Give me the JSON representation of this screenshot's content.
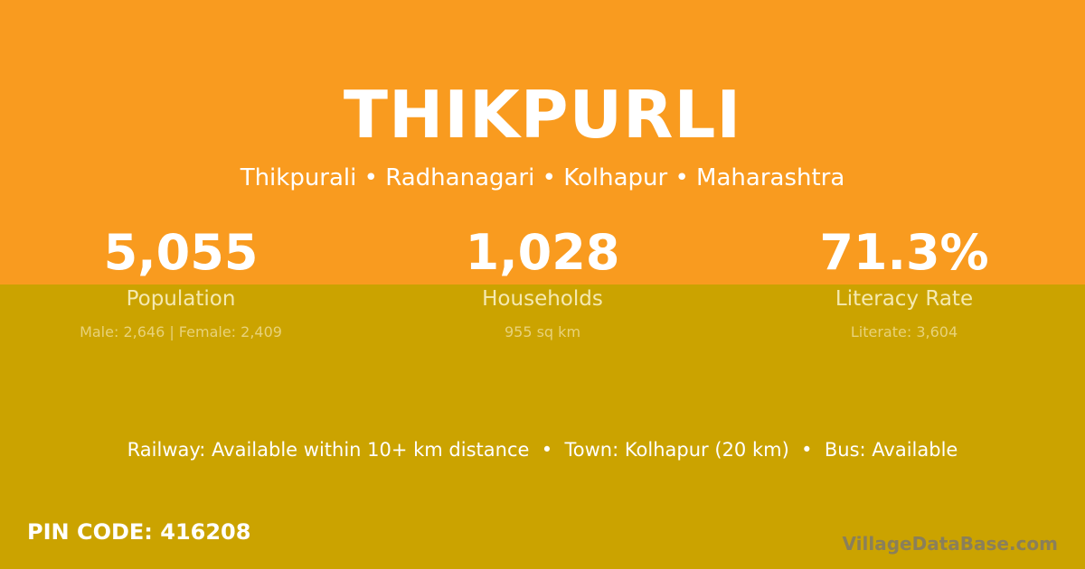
{
  "village": {
    "name": "THIKPURLI",
    "location": "Thikpurali • Radhanagari • Kolhapur • Maharashtra"
  },
  "stats": [
    {
      "value": "5,055",
      "label": "Population",
      "sub": "Male: 2,646 | Female: 2,409"
    },
    {
      "value": "1,028",
      "label": "Households",
      "sub": "955 sq km"
    },
    {
      "value": "71.3%",
      "label": "Literacy Rate",
      "sub": "Literate: 3,604"
    }
  ],
  "facilities": "Railway: Available within 10+ km distance  •  Town: Kolhapur (20 km)  •  Bus: Available",
  "pin_code": "PIN CODE: 416208",
  "brand": "VillageDataBase.com",
  "colors": {
    "top": "#f99b1f",
    "bottom": "#cba300"
  }
}
